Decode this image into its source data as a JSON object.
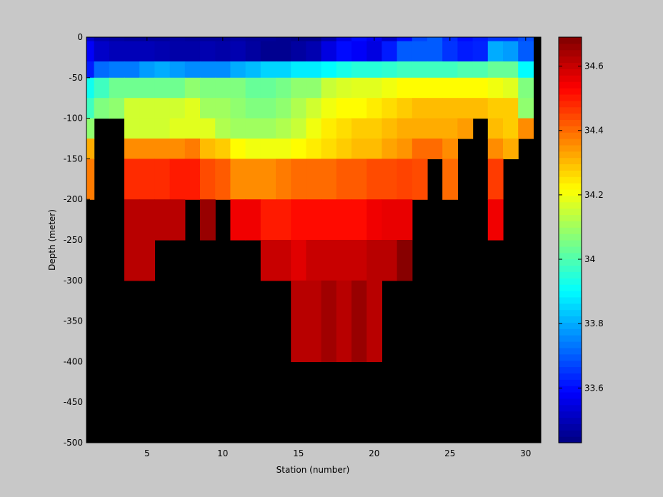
{
  "chart_data": {
    "type": "heatmap",
    "xlabel": "Station (number)",
    "ylabel": "Depth (meter)",
    "xlim": [
      1,
      31
    ],
    "ylim": [
      -500,
      0
    ],
    "xticks": [
      5,
      10,
      15,
      20,
      25,
      30
    ],
    "yticks": [
      0,
      -50,
      -100,
      -150,
      -200,
      -250,
      -300,
      -350,
      -400,
      -450,
      -500
    ],
    "x": [
      1,
      2,
      3,
      4,
      5,
      6,
      7,
      8,
      9,
      10,
      11,
      12,
      13,
      14,
      15,
      16,
      17,
      18,
      19,
      20,
      21,
      22,
      23,
      24,
      25,
      26,
      27,
      28,
      29,
      30
    ],
    "depth_bins": [
      [
        0,
        -5
      ],
      [
        -5,
        -30
      ],
      [
        -30,
        -50
      ],
      [
        -50,
        -75
      ],
      [
        -75,
        -100
      ],
      [
        -100,
        -125
      ],
      [
        -125,
        -150
      ],
      [
        -150,
        -200
      ],
      [
        -200,
        -250
      ],
      [
        -250,
        -300
      ],
      [
        -300,
        -400
      ]
    ],
    "colorbar": {
      "min": 33.43,
      "max": 34.69,
      "ticks": [
        33.6,
        33.8,
        34,
        34.2,
        34.4,
        34.6
      ],
      "tick_labels": [
        "33.6",
        "33.8",
        "34",
        "34.2",
        "34.4",
        "34.6"
      ]
    },
    "values": [
      [
        33.52,
        33.48,
        33.47,
        33.46,
        33.46,
        33.46,
        33.47,
        33.46,
        33.46,
        33.46,
        33.47,
        33.46,
        33.46,
        33.45,
        33.44,
        33.44,
        33.48,
        33.55,
        33.6,
        33.57,
        33.52,
        33.6,
        33.67,
        33.7,
        33.64,
        33.6,
        33.62,
        33.65,
        33.65,
        33.68
      ],
      [
        33.58,
        33.52,
        33.5,
        33.5,
        33.5,
        33.49,
        33.48,
        33.48,
        33.49,
        33.48,
        33.49,
        33.47,
        33.45,
        33.45,
        33.47,
        33.49,
        33.55,
        33.6,
        33.58,
        33.55,
        33.62,
        33.7,
        33.7,
        33.7,
        33.65,
        33.62,
        33.63,
        33.8,
        33.78,
        33.7
      ],
      [
        33.62,
        33.72,
        33.74,
        33.74,
        33.78,
        33.8,
        33.78,
        33.76,
        33.76,
        33.76,
        33.8,
        33.82,
        33.85,
        33.85,
        33.88,
        33.88,
        33.9,
        33.93,
        33.95,
        33.95,
        33.96,
        33.98,
        33.98,
        33.98,
        33.98,
        34.0,
        34.0,
        34.03,
        34.03,
        33.9
      ],
      [
        33.92,
        33.98,
        34.04,
        34.04,
        34.04,
        34.04,
        34.04,
        34.08,
        34.06,
        34.06,
        34.06,
        34.03,
        34.03,
        34.05,
        34.08,
        34.08,
        34.15,
        34.17,
        34.18,
        34.18,
        34.2,
        34.22,
        34.22,
        34.22,
        34.22,
        34.22,
        34.22,
        34.2,
        34.18,
        34.06
      ],
      [
        33.98,
        34.06,
        34.08,
        34.16,
        34.16,
        34.16,
        34.16,
        34.18,
        34.1,
        34.1,
        34.08,
        34.06,
        34.06,
        34.08,
        34.12,
        34.16,
        34.2,
        34.22,
        34.22,
        34.24,
        34.26,
        34.28,
        34.3,
        34.3,
        34.3,
        34.3,
        34.3,
        34.28,
        34.28,
        34.08
      ],
      [
        34.08,
        null,
        null,
        34.16,
        34.16,
        34.16,
        34.18,
        34.18,
        34.18,
        34.12,
        34.1,
        34.1,
        34.1,
        34.12,
        34.15,
        34.2,
        34.24,
        34.26,
        34.28,
        34.28,
        34.3,
        34.32,
        34.32,
        34.32,
        34.32,
        34.34,
        null,
        34.3,
        34.28,
        34.36
      ],
      [
        34.32,
        null,
        null,
        34.36,
        34.36,
        34.36,
        34.36,
        34.38,
        34.3,
        34.28,
        34.22,
        34.2,
        34.2,
        34.2,
        34.22,
        34.24,
        34.26,
        34.28,
        34.3,
        34.3,
        34.33,
        34.35,
        34.4,
        34.4,
        34.36,
        null,
        null,
        34.36,
        34.32,
        null
      ],
      [
        34.38,
        null,
        null,
        34.48,
        34.48,
        34.48,
        34.5,
        34.5,
        34.44,
        34.42,
        34.36,
        34.36,
        34.36,
        34.38,
        34.4,
        34.4,
        34.4,
        34.42,
        34.42,
        34.44,
        34.44,
        34.45,
        34.44,
        null,
        34.4,
        null,
        null,
        34.46,
        null,
        null
      ],
      [
        null,
        null,
        null,
        34.62,
        34.62,
        34.62,
        34.62,
        null,
        34.66,
        null,
        34.55,
        34.55,
        34.5,
        34.5,
        34.52,
        34.52,
        34.52,
        34.52,
        34.52,
        34.55,
        34.56,
        34.56,
        null,
        null,
        null,
        null,
        null,
        34.55,
        null,
        null
      ],
      [
        null,
        null,
        null,
        34.62,
        34.62,
        null,
        null,
        null,
        null,
        null,
        null,
        null,
        34.6,
        34.6,
        34.57,
        34.6,
        34.6,
        34.6,
        34.6,
        34.62,
        34.62,
        34.68,
        null,
        null,
        null,
        null,
        null,
        null,
        null,
        null
      ],
      [
        null,
        null,
        null,
        null,
        null,
        null,
        null,
        null,
        null,
        null,
        null,
        null,
        null,
        null,
        34.62,
        34.62,
        34.65,
        34.62,
        34.66,
        34.62,
        null,
        null,
        null,
        null,
        null,
        null,
        null,
        null,
        null,
        null
      ]
    ]
  }
}
